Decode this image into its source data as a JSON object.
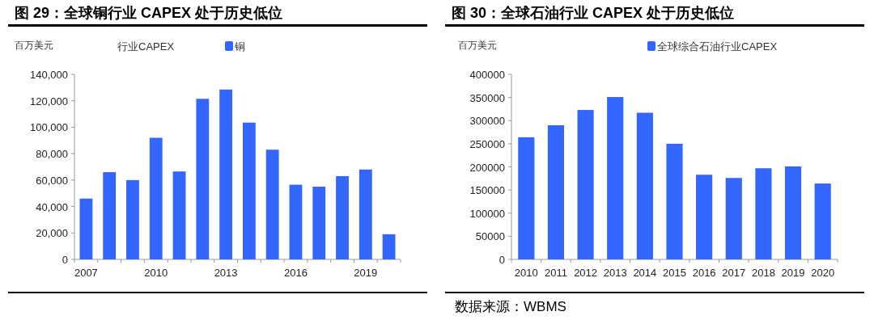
{
  "chart_data": [
    {
      "type": "bar",
      "title": "图 29：全球铜行业 CAPEX 处于历史低位",
      "subtitle": "行业CAPEX",
      "ylabel": "百万美元",
      "categories": [
        "2007",
        null,
        null,
        "2010",
        null,
        null,
        "2013",
        null,
        null,
        "2016",
        null,
        null,
        "2019",
        null
      ],
      "series": [
        {
          "name": "铜",
          "color": "#3366ff",
          "values": [
            46000,
            66000,
            60000,
            92000,
            66500,
            121500,
            128500,
            103500,
            83000,
            56500,
            55000,
            63000,
            68000,
            19000
          ]
        }
      ],
      "ylim": [
        0,
        140000
      ],
      "yticks": [
        0,
        {
          "value": 20000,
          "label": "20,000"
        },
        {
          "value": 40000,
          "label": "40,000"
        },
        {
          "value": 60000,
          "label": "60,000"
        },
        {
          "value": 80000,
          "label": "80,000"
        },
        {
          "value": 100000,
          "label": "100,000"
        },
        {
          "value": 120000,
          "label": "120,000"
        },
        {
          "value": 140000,
          "label": "140,000"
        }
      ],
      "legend": "top",
      "grid": false
    },
    {
      "type": "bar",
      "title": "图 30：全球石油行业 CAPEX 处于历史低位",
      "ylabel": "百万美元",
      "categories": [
        "2010",
        "2011",
        "2012",
        "2013",
        "2014",
        "2015",
        "2016",
        "2017",
        "2018",
        "2019",
        "2020"
      ],
      "series": [
        {
          "name": "全球综合石油行业CAPEX",
          "color": "#3366ff",
          "values": [
            264000,
            290000,
            323000,
            351000,
            317000,
            250000,
            183000,
            176000,
            197000,
            201000,
            164000
          ]
        }
      ],
      "ylim": [
        0,
        400000
      ],
      "yticks": [
        0,
        50000,
        100000,
        150000,
        200000,
        250000,
        300000,
        350000,
        400000
      ],
      "legend": "top",
      "grid": false,
      "annotations": [
        "数据来源：WBMS"
      ]
    }
  ]
}
